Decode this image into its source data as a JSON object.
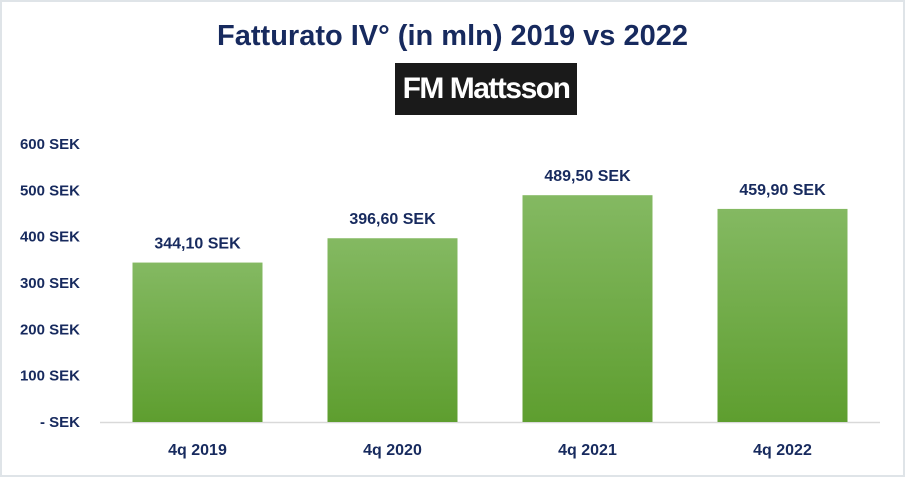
{
  "chart_data": {
    "type": "bar",
    "title": "Fatturato IV° (in mln) 2019 vs 2022",
    "logo_text": "FM Mattsson",
    "categories": [
      "4q 2019",
      "4q 2020",
      "4q 2021",
      "4q 2022"
    ],
    "values": [
      344.1,
      396.6,
      489.5,
      459.9
    ],
    "data_labels": [
      "344,10 SEK",
      "396,60 SEK",
      "489,50 SEK",
      "459,90 SEK"
    ],
    "y_ticks": [
      0,
      100,
      200,
      300,
      400,
      500,
      600
    ],
    "y_tick_labels": [
      "- SEK",
      "100 SEK",
      "200 SEK",
      "300 SEK",
      "400 SEK",
      "500 SEK",
      "600 SEK"
    ],
    "ylim": [
      0,
      600
    ],
    "xlabel": "",
    "ylabel": "",
    "grid": false,
    "colors": {
      "bar_top": "#84b962",
      "bar_bottom": "#5e9e2f",
      "text": "#172a5e",
      "axis": "#d9d9d9"
    }
  }
}
